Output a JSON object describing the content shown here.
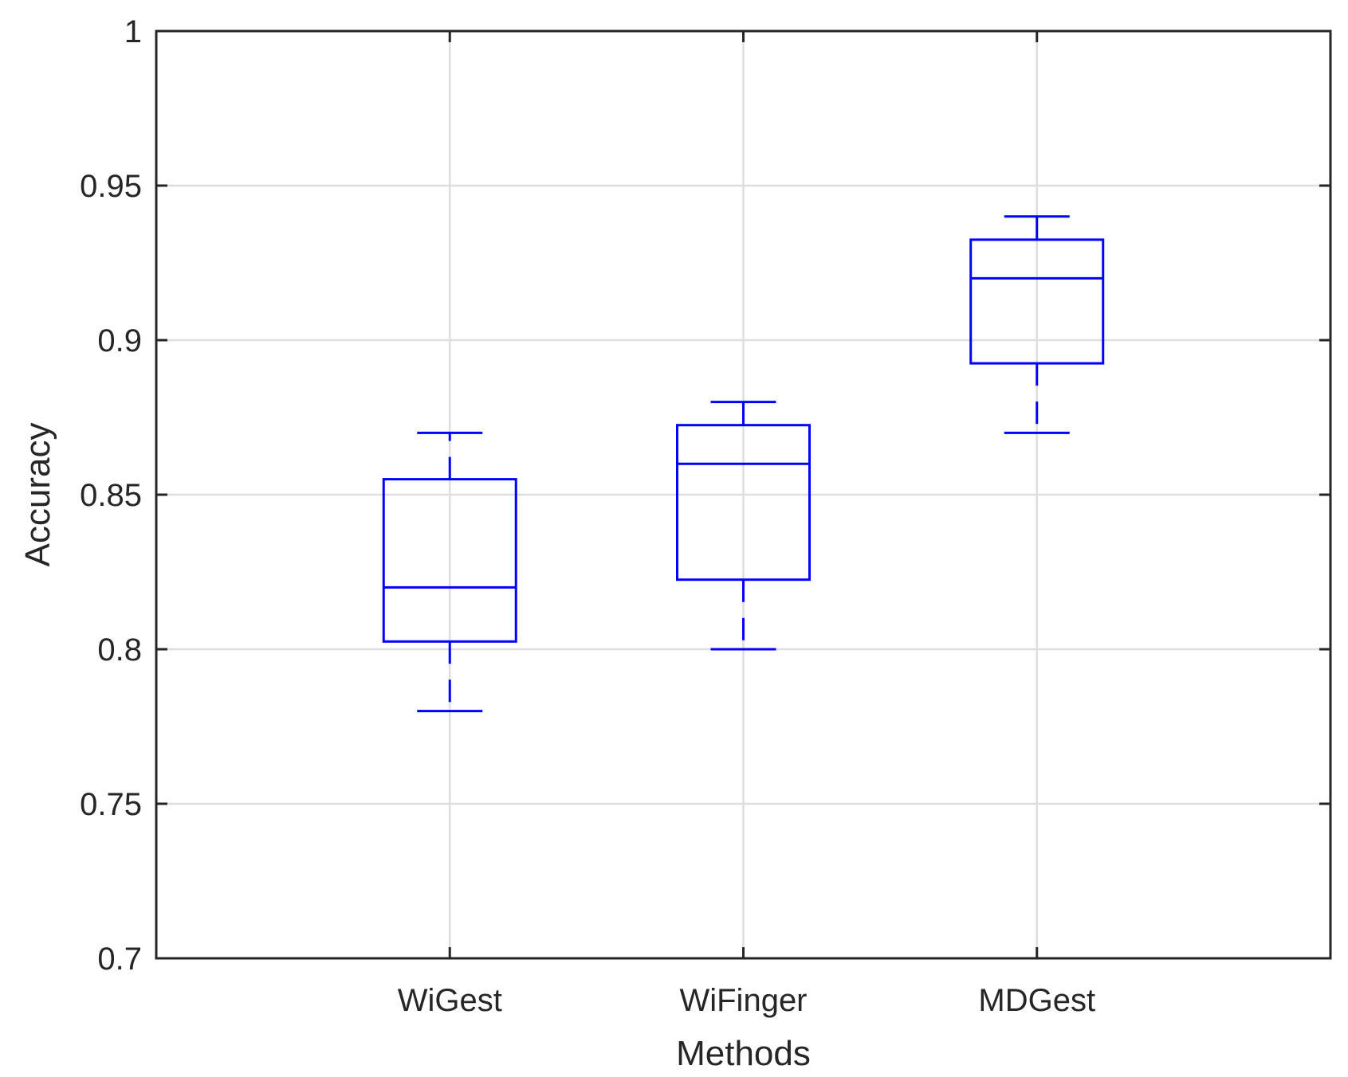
{
  "chart_data": {
    "type": "boxplot",
    "title": "",
    "xlabel": "Methods",
    "ylabel": "Accuracy",
    "ylim": [
      0.7,
      1.0
    ],
    "yticks": [
      0.7,
      0.75,
      0.8,
      0.85,
      0.9,
      0.95,
      1
    ],
    "ytick_labels": [
      "0.7",
      "0.75",
      "0.8",
      "0.85",
      "0.9",
      "0.95",
      "1"
    ],
    "grid": true,
    "categories": [
      "WiGest",
      "WiFinger",
      "MDGest"
    ],
    "boxes": [
      {
        "name": "WiGest",
        "whisker_low": 0.78,
        "q1": 0.8025,
        "median": 0.82,
        "q3": 0.855,
        "whisker_high": 0.87
      },
      {
        "name": "WiFinger",
        "whisker_low": 0.8,
        "q1": 0.8225,
        "median": 0.86,
        "q3": 0.8725,
        "whisker_high": 0.88
      },
      {
        "name": "MDGest",
        "whisker_low": 0.87,
        "q1": 0.8925,
        "median": 0.92,
        "q3": 0.9325,
        "whisker_high": 0.94
      }
    ],
    "colors": {
      "box": "#0000ff",
      "grid": "#dedede",
      "axis": "#262626",
      "text": "#262626"
    }
  }
}
